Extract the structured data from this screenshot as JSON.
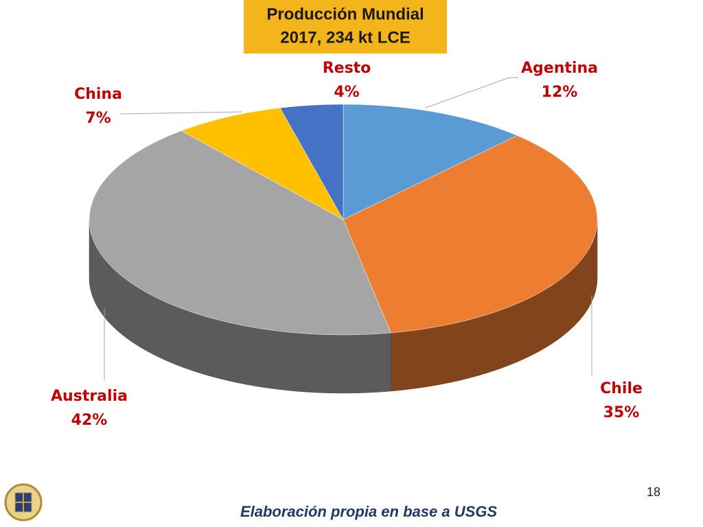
{
  "chart_data": {
    "type": "pie3d",
    "title": "Producción Mundial",
    "subtitle": "2017, 234 kt LCE",
    "categories": [
      "Agentina",
      "Chile",
      "Australia",
      "China",
      "Resto"
    ],
    "values": [
      12,
      35,
      42,
      7,
      4
    ],
    "value_labels": [
      "12%",
      "35%",
      "42%",
      "7%",
      "4%"
    ],
    "colors": [
      "#5b9bd5",
      "#ed7d31",
      "#a5a5a5",
      "#ffc000",
      "#4472c4"
    ]
  },
  "footer": {
    "source": "Elaboración propia en base a USGS",
    "page_number": 18
  }
}
